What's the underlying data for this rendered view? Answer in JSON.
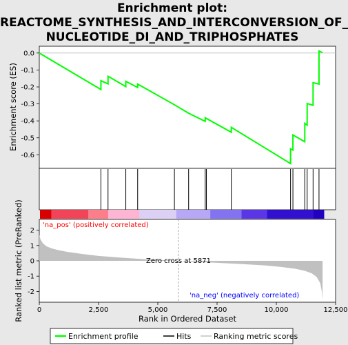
{
  "title_lines": [
    "Enrichment plot:",
    "REACTOME_SYNTHESIS_AND_INTERCONVERSION_OF_",
    "NUCLEOTIDE_DI_AND_TRIPHOSPHATES"
  ],
  "colors": {
    "es_line": "#00ff00",
    "hits": "#000000",
    "metric_fill": "#c0c0c0",
    "pos_label": "#ff0000",
    "neg_label": "#0000ff"
  },
  "chart_data": {
    "type": "line",
    "title": "Enrichment plot: REACTOME_SYNTHESIS_AND_INTERCONVERSION_OF_NUCLEOTIDE_DI_AND_TRIPHOSPHATES",
    "xlabel": "Rank in Ordered Dataset",
    "xlim": [
      0,
      12500
    ],
    "x_ticks": [
      "0",
      "2,500",
      "5,000",
      "7,500",
      "10,000",
      "12,500"
    ],
    "x_tick_values": [
      0,
      2500,
      5000,
      7500,
      10000,
      12500
    ],
    "top_panel": {
      "ylabel": "Enrichment score (ES)",
      "ylim": [
        -0.68,
        0.04
      ],
      "y_ticks": [
        "0.0",
        "-0.1",
        "-0.2",
        "-0.3",
        "-0.4",
        "-0.5",
        "-0.6"
      ],
      "y_tick_values": [
        0.0,
        -0.1,
        -0.2,
        -0.3,
        -0.4,
        -0.5,
        -0.6
      ],
      "es_curve": {
        "x": [
          0,
          2600,
          2600,
          2900,
          2900,
          3650,
          3650,
          4150,
          4150,
          5700,
          6300,
          7000,
          7000,
          8100,
          8100,
          10600,
          10600,
          10700,
          10700,
          11200,
          11200,
          11300,
          11300,
          11550,
          11550,
          11800,
          11800,
          11950
        ],
        "y": [
          0.0,
          -0.215,
          -0.163,
          -0.182,
          -0.137,
          -0.198,
          -0.167,
          -0.203,
          -0.183,
          -0.305,
          -0.355,
          -0.403,
          -0.382,
          -0.467,
          -0.438,
          -0.652,
          -0.565,
          -0.572,
          -0.483,
          -0.523,
          -0.415,
          -0.425,
          -0.298,
          -0.308,
          -0.175,
          -0.183,
          0.012,
          0.002
        ]
      }
    },
    "hits": [
      2600,
      2900,
      3650,
      4150,
      5700,
      6300,
      7000,
      7050,
      8100,
      10600,
      10700,
      11200,
      11300,
      11550,
      11800
    ],
    "bottom_panel": {
      "ylabel": "Ranked list metric (PreRanked)",
      "ylim": [
        -2.7,
        2.7
      ],
      "y_ticks": [
        "2",
        "1",
        "0",
        "-1",
        "-2"
      ],
      "y_tick_values": [
        2,
        1,
        0,
        -1,
        -2
      ],
      "metric_curve": {
        "x": [
          0,
          50,
          150,
          300,
          500,
          800,
          1200,
          1800,
          2500,
          3500,
          4500,
          5500,
          5871,
          6500,
          7500,
          8500,
          9500,
          10200,
          10800,
          11200,
          11500,
          11700,
          11850,
          11920,
          11950
        ],
        "y": [
          1.7,
          1.4,
          1.15,
          0.95,
          0.82,
          0.7,
          0.58,
          0.45,
          0.32,
          0.2,
          0.1,
          0.03,
          0.0,
          -0.06,
          -0.13,
          -0.21,
          -0.3,
          -0.4,
          -0.52,
          -0.65,
          -0.82,
          -1.05,
          -1.45,
          -2.0,
          -2.55
        ]
      },
      "zero_cross_label": "Zero cross at 5871",
      "zero_cross": 5871,
      "pos_label": "'na_pos' (positively correlated)",
      "neg_label": "'na_neg' (negatively correlated)"
    },
    "colorbar_colors": [
      "#e8001c",
      "#f14459",
      "#fb7e8a",
      "#fdb5d3",
      "#dcd0f5",
      "#b7a8f5",
      "#8373f0",
      "#5b36e6",
      "#3210d0"
    ],
    "legend": [
      "Enrichment profile",
      "Hits",
      "Ranking metric scores"
    ]
  }
}
